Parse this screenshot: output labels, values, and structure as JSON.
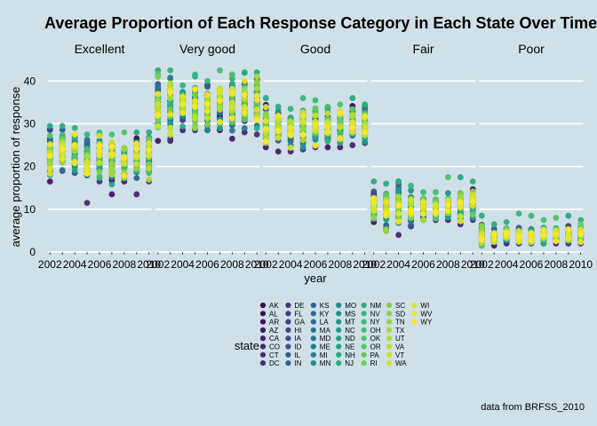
{
  "chart_data": {
    "type": "scatter",
    "title": "Average Proportion of Each Response Category in Each State Over Time",
    "xlabel": "year",
    "ylabel": "average proportion of response",
    "caption": "data from BRFSS_2010",
    "legend_title": "state",
    "legend_position": "bottom",
    "grid": true,
    "ylim": [
      0,
      44
    ],
    "yticks": [
      0,
      10,
      20,
      30,
      40
    ],
    "xlim": [
      2001.8,
      2010.2
    ],
    "xtick_labels": [
      "2002",
      "2004",
      "2006",
      "2008",
      "2010"
    ],
    "years": [
      2002,
      2003,
      2004,
      2005,
      2006,
      2007,
      2008,
      2009,
      2010
    ],
    "facets": [
      {
        "label": "Excellent",
        "mean": [
          23.5,
          24.0,
          23.5,
          22.0,
          22.0,
          21.5,
          21.5,
          22.5,
          22.0
        ],
        "min": [
          16.5,
          19.0,
          18.5,
          11.5,
          16.5,
          13.5,
          16.5,
          13.5,
          16.5
        ],
        "max": [
          29.5,
          29.5,
          29.0,
          27.5,
          28.0,
          27.5,
          28.0,
          28.0,
          28.0
        ]
      },
      {
        "label": "Very good",
        "mean": [
          35.0,
          34.5,
          34.5,
          34.0,
          34.5,
          34.5,
          35.0,
          34.5,
          35.0
        ],
        "min": [
          26.0,
          26.0,
          28.5,
          28.5,
          28.5,
          28.5,
          26.5,
          28.0,
          27.5
        ],
        "max": [
          42.5,
          42.5,
          39.0,
          41.5,
          40.0,
          42.5,
          41.5,
          42.0,
          42.0
        ]
      },
      {
        "label": "Good",
        "mean": [
          29.5,
          29.5,
          29.0,
          29.5,
          29.5,
          29.0,
          29.5,
          30.0,
          29.5
        ],
        "min": [
          24.5,
          23.5,
          23.5,
          24.0,
          24.5,
          24.5,
          24.5,
          25.0,
          25.5
        ],
        "max": [
          36.0,
          34.0,
          33.5,
          36.0,
          35.5,
          34.0,
          34.5,
          36.0,
          34.5
        ]
      },
      {
        "label": "Fair",
        "mean": [
          10.5,
          10.5,
          10.5,
          10.5,
          10.5,
          10.5,
          10.5,
          10.5,
          11.0
        ],
        "min": [
          7.0,
          5.0,
          4.0,
          6.0,
          7.5,
          7.5,
          7.5,
          6.5,
          7.5
        ],
        "max": [
          16.5,
          16.0,
          16.5,
          15.5,
          14.0,
          14.0,
          17.5,
          17.5,
          16.5
        ]
      },
      {
        "label": "Poor",
        "mean": [
          4.0,
          3.5,
          4.0,
          4.0,
          4.0,
          4.0,
          4.0,
          3.8,
          4.0
        ],
        "min": [
          1.5,
          1.5,
          2.0,
          2.0,
          2.0,
          2.0,
          2.0,
          2.0,
          2.0
        ],
        "max": [
          8.5,
          6.5,
          7.0,
          9.0,
          8.5,
          7.5,
          8.0,
          8.5,
          7.5
        ]
      }
    ],
    "states": [
      "AK",
      "AL",
      "AR",
      "AZ",
      "CA",
      "CO",
      "CT",
      "DC",
      "DE",
      "FL",
      "GA",
      "HI",
      "IA",
      "ID",
      "IL",
      "IN",
      "KS",
      "KY",
      "LA",
      "MA",
      "MD",
      "ME",
      "MI",
      "MN",
      "MO",
      "MS",
      "MT",
      "NC",
      "ND",
      "NE",
      "NH",
      "NJ",
      "NM",
      "NV",
      "NY",
      "OH",
      "OK",
      "OR",
      "PA",
      "RI",
      "SC",
      "SD",
      "TN",
      "TX",
      "UT",
      "VA",
      "VT",
      "WA",
      "WI",
      "WV",
      "WY"
    ],
    "colors": {
      "background": "#cfe0e8",
      "gridline": "#ffffff",
      "viridis": [
        "#440154",
        "#482878",
        "#3e4989",
        "#31688e",
        "#26828e",
        "#1f9e89",
        "#35b779",
        "#6ece58",
        "#b5de2b",
        "#fde725"
      ]
    }
  }
}
